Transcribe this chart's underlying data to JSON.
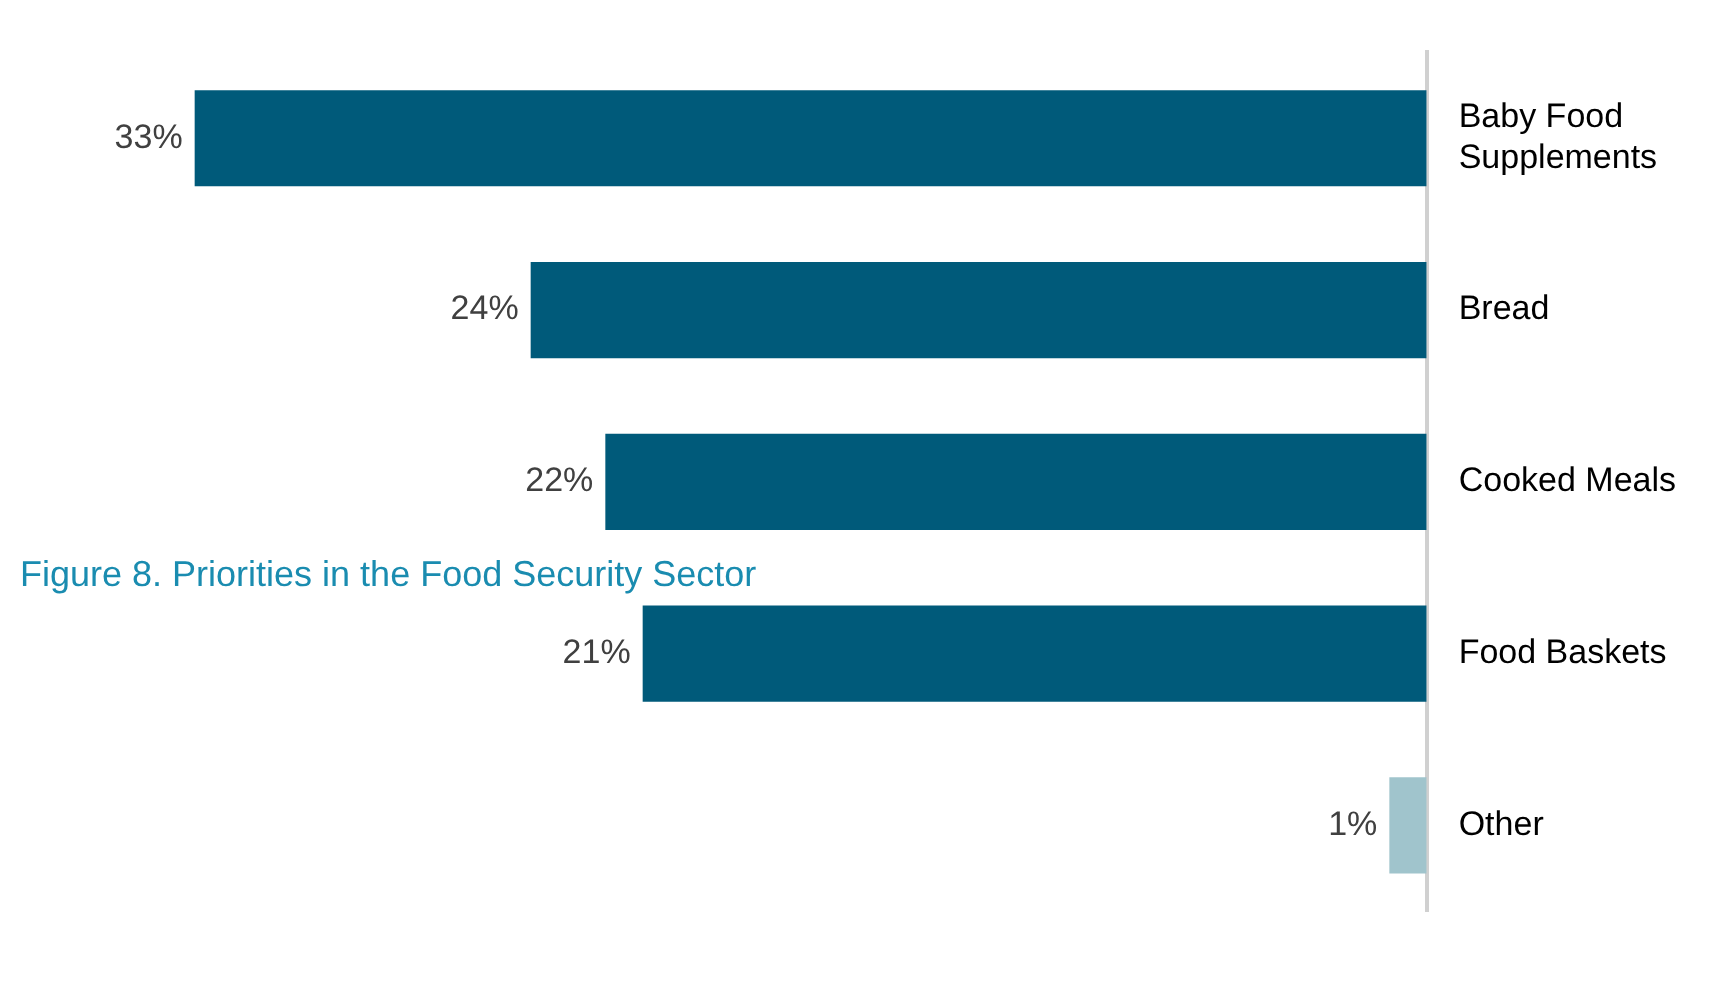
{
  "chart_data": {
    "type": "bar",
    "orientation": "horizontal",
    "title": "Figure 8. Priorities in the Food Security Sector",
    "categories": [
      "Baby Food Supplements",
      "Bread",
      "Cooked Meals",
      "Food Baskets",
      "Other"
    ],
    "values": [
      33,
      24,
      22,
      21,
      1
    ],
    "colors": [
      "#005a7a",
      "#005a7a",
      "#005a7a",
      "#005a7a",
      "#a0c4cc"
    ],
    "value_labels": [
      "33%",
      "24%",
      "22%",
      "21%",
      "1%"
    ],
    "tick_labels": "y",
    "legend": false
  }
}
